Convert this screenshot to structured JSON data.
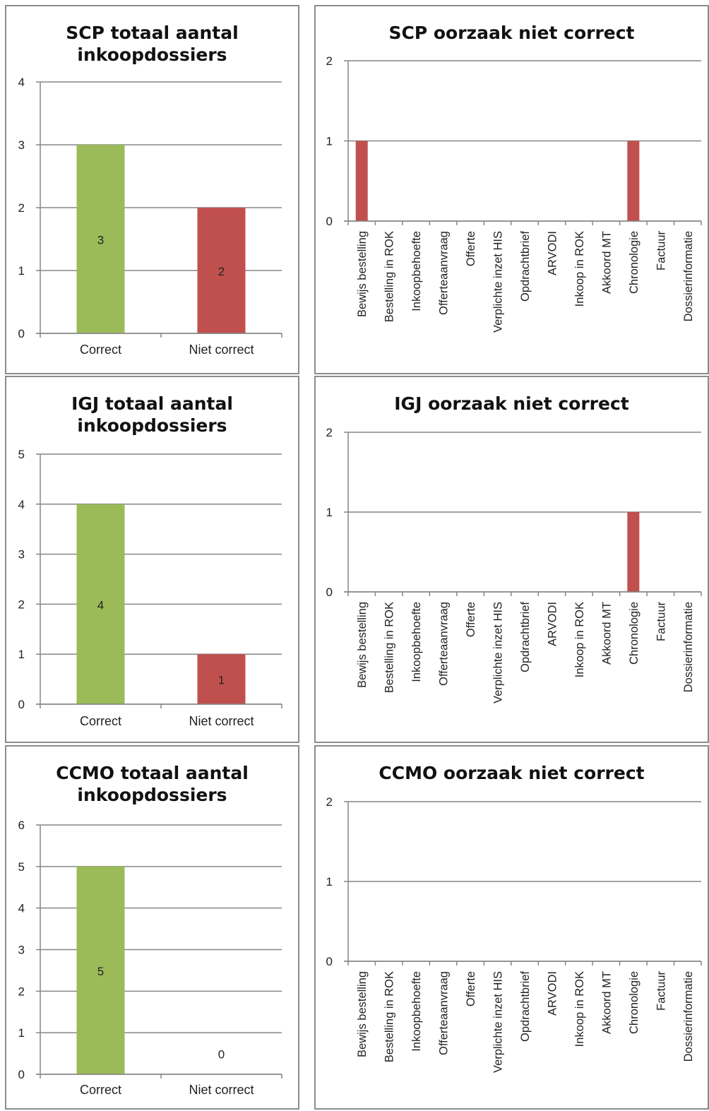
{
  "colors": {
    "green": "#9bbb59",
    "red": "#c0504d",
    "grid": "#868686",
    "text": "#222222"
  },
  "chart_data": [
    {
      "type": "bar",
      "title": "SCP totaal aantal inkoopdossiers",
      "categories": [
        "Correct",
        "Niet correct"
      ],
      "values": [
        3,
        2
      ],
      "data_labels": [
        "3",
        "2"
      ],
      "bar_colors": [
        "green",
        "red"
      ],
      "ylim": [
        0,
        4
      ],
      "yticks": [
        0,
        1,
        2,
        3,
        4
      ],
      "grid": true
    },
    {
      "type": "bar",
      "title": "SCP oorzaak niet correct",
      "categories": [
        "Bewijs bestelling",
        "Bestelling in ROK",
        "Inkoopbehoefte",
        "Offerteaanvraag",
        "Offerte",
        "Verplichte inzet HIS",
        "Opdrachtbrief",
        "ARVODI",
        "Inkoop in ROK",
        "Akkoord MT",
        "Chronologie",
        "Factuur",
        "Dossierinformatie"
      ],
      "values": [
        1,
        0,
        0,
        0,
        0,
        0,
        0,
        0,
        0,
        0,
        1,
        0,
        0
      ],
      "bar_color": "red",
      "ylim": [
        0,
        2
      ],
      "yticks": [
        0,
        1,
        2
      ],
      "grid": true
    },
    {
      "type": "bar",
      "title": "IGJ totaal aantal inkoopdossiers",
      "categories": [
        "Correct",
        "Niet correct"
      ],
      "values": [
        4,
        1
      ],
      "data_labels": [
        "4",
        "1"
      ],
      "bar_colors": [
        "green",
        "red"
      ],
      "ylim": [
        0,
        5
      ],
      "yticks": [
        0,
        1,
        2,
        3,
        4,
        5
      ],
      "grid": true
    },
    {
      "type": "bar",
      "title": "IGJ oorzaak niet correct",
      "categories": [
        "Bewijs bestelling",
        "Bestelling in ROK",
        "Inkoopbehoefte",
        "Offerteaanvraag",
        "Offerte",
        "Verplichte inzet HIS",
        "Opdrachtbrief",
        "ARVODI",
        "Inkoop in ROK",
        "Akkoord MT",
        "Chronologie",
        "Factuur",
        "Dossierinformatie"
      ],
      "values": [
        0,
        0,
        0,
        0,
        0,
        0,
        0,
        0,
        0,
        0,
        1,
        0,
        0
      ],
      "bar_color": "red",
      "ylim": [
        0,
        2
      ],
      "yticks": [
        0,
        1,
        2
      ],
      "grid": true
    },
    {
      "type": "bar",
      "title": "CCMO totaal aantal inkoopdossiers",
      "categories": [
        "Correct",
        "Niet correct"
      ],
      "values": [
        5,
        0
      ],
      "data_labels": [
        "5",
        "0"
      ],
      "bar_colors": [
        "green",
        "red"
      ],
      "ylim": [
        0,
        6
      ],
      "yticks": [
        0,
        1,
        2,
        3,
        4,
        5,
        6
      ],
      "grid": true
    },
    {
      "type": "bar",
      "title": "CCMO oorzaak niet correct",
      "categories": [
        "Bewijs bestelling",
        "Bestelling in ROK",
        "Inkoopbehoefte",
        "Offerteaanvraag",
        "Offerte",
        "Verplichte inzet HIS",
        "Opdrachtbrief",
        "ARVODI",
        "Inkoop in ROK",
        "Akkoord MT",
        "Chronologie",
        "Factuur",
        "Dossierinformatie"
      ],
      "values": [
        0,
        0,
        0,
        0,
        0,
        0,
        0,
        0,
        0,
        0,
        0,
        0,
        0
      ],
      "bar_color": "red",
      "ylim": [
        0,
        2
      ],
      "yticks": [
        0,
        1,
        2
      ],
      "grid": true
    }
  ]
}
